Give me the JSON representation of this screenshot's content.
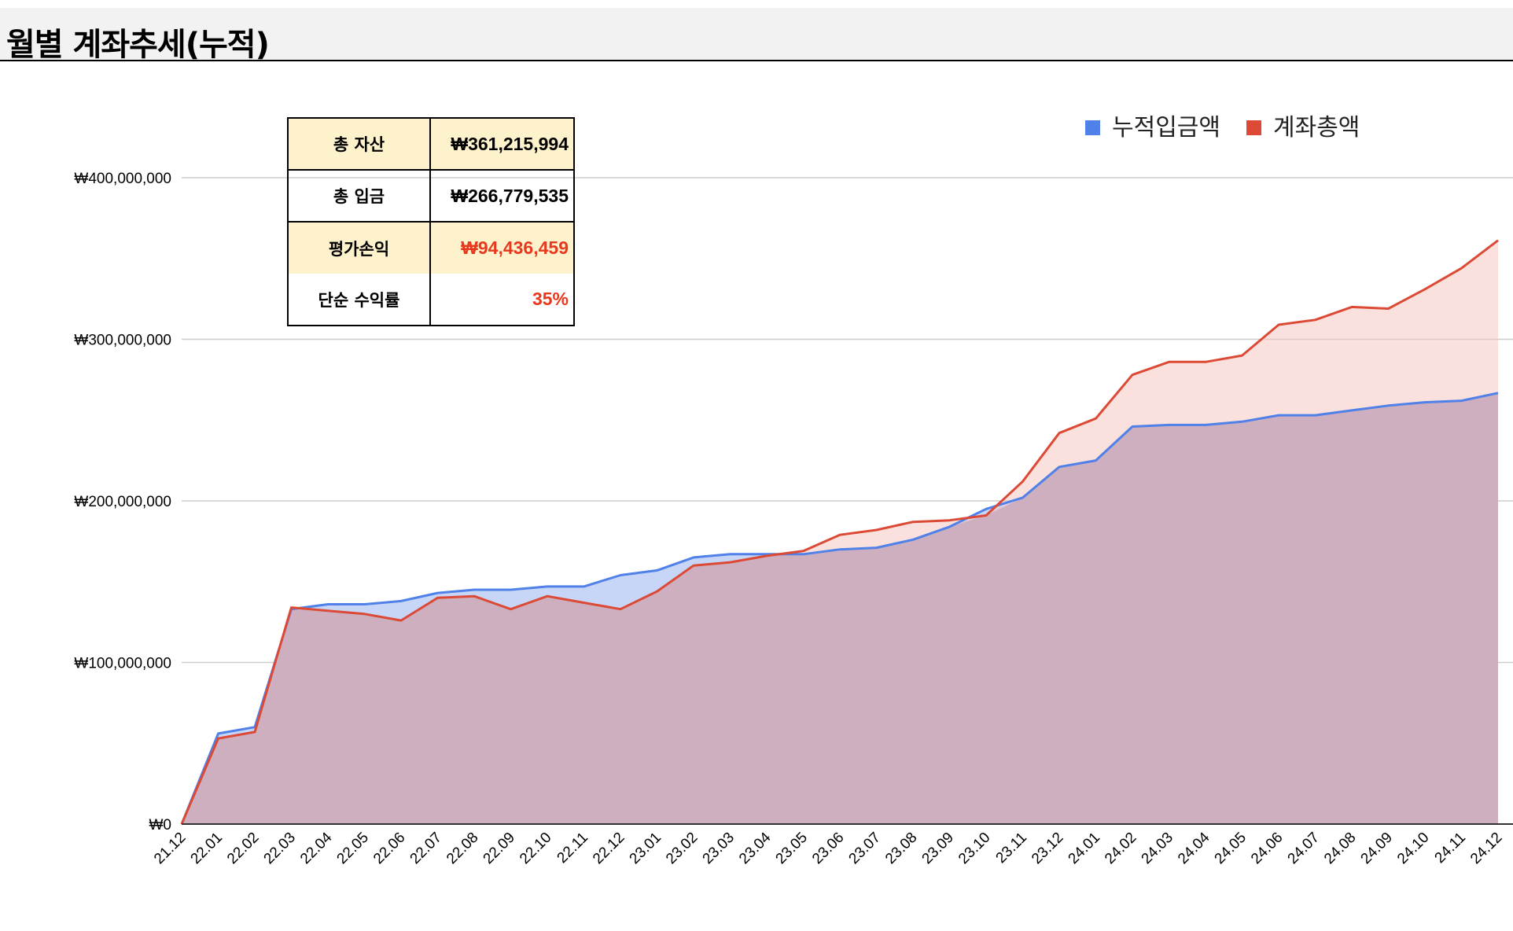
{
  "page": {
    "title": "월별 계좌추세(누적)"
  },
  "summary": {
    "rows": [
      {
        "label": "총 자산",
        "value": "₩361,215,994"
      },
      {
        "label": "총 입금",
        "value": "₩266,779,535"
      },
      {
        "label": "평가손익",
        "value": "₩94,436,459"
      },
      {
        "label": "단순 수익률",
        "value": "35%"
      }
    ]
  },
  "chart_data": {
    "type": "area",
    "title": "",
    "xlabel": "",
    "ylabel": "",
    "ylim": [
      0,
      400000000
    ],
    "yticks": [
      0,
      100000000,
      200000000,
      300000000,
      400000000
    ],
    "ytick_labels": [
      "₩0",
      "₩100,000,000",
      "₩200,000,000",
      "₩300,000,000",
      "₩400,000,000"
    ],
    "grid": true,
    "legend_position": "top-right",
    "categories": [
      "21.12",
      "22.01",
      "22.02",
      "22.03",
      "22.04",
      "22.05",
      "22.06",
      "22.07",
      "22.08",
      "22.09",
      "22.10",
      "22.11",
      "22.12",
      "23.01",
      "23.02",
      "23.03",
      "23.04",
      "23.05",
      "23.06",
      "23.07",
      "23.08",
      "23.09",
      "23.10",
      "23.11",
      "23.12",
      "24.01",
      "24.02",
      "24.03",
      "24.04",
      "24.05",
      "24.06",
      "24.07",
      "24.08",
      "24.09",
      "24.10",
      "24.11",
      "24.12"
    ],
    "series": [
      {
        "name": "누적입금액",
        "color": "#4f81e8",
        "fill": "#c7d5f7",
        "values": [
          0,
          56000000,
          60000000,
          133000000,
          136000000,
          136000000,
          138000000,
          143000000,
          145000000,
          145000000,
          147000000,
          147000000,
          154000000,
          157000000,
          165000000,
          167000000,
          167000000,
          167000000,
          170000000,
          171000000,
          176000000,
          184000000,
          195000000,
          202000000,
          221000000,
          225000000,
          246000000,
          247000000,
          247000000,
          249000000,
          253000000,
          253000000,
          256000000,
          259000000,
          261000000,
          262000000,
          266779535
        ]
      },
      {
        "name": "계좌총액",
        "color": "#dc4a36",
        "fill": "#f5c8c2",
        "values": [
          0,
          53000000,
          57000000,
          134000000,
          132000000,
          130000000,
          126000000,
          140000000,
          141000000,
          133000000,
          141000000,
          137000000,
          133000000,
          144000000,
          160000000,
          162000000,
          166000000,
          169000000,
          179000000,
          182000000,
          187000000,
          188000000,
          191000000,
          212000000,
          242000000,
          251000000,
          278000000,
          286000000,
          286000000,
          290000000,
          309000000,
          312000000,
          320000000,
          319000000,
          331000000,
          344000000,
          361215994
        ]
      }
    ]
  }
}
